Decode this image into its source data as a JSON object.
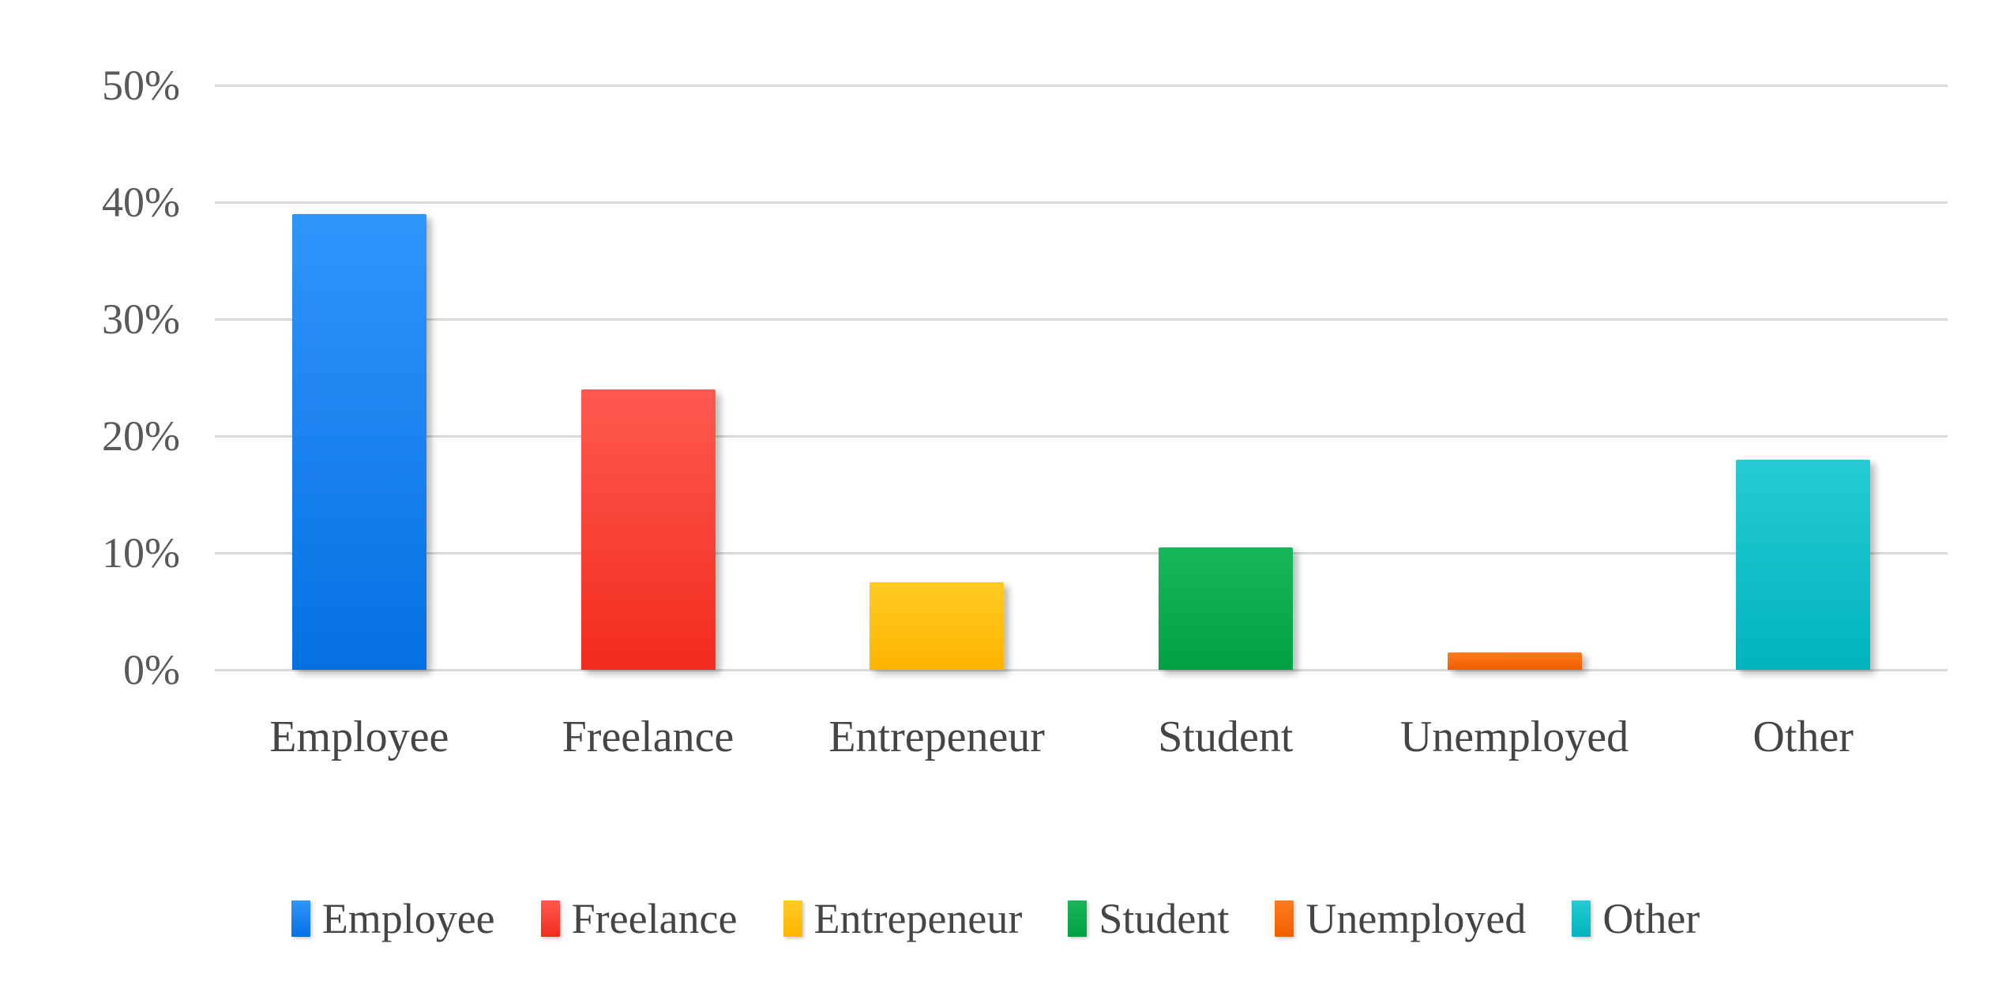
{
  "chart_data": {
    "type": "bar",
    "title": "",
    "xlabel": "",
    "ylabel": "",
    "categories": [
      "Employee",
      "Freelance",
      "Entrepeneur",
      "Student",
      "Unemployed",
      "Other"
    ],
    "values": [
      39,
      24,
      7.5,
      10.5,
      1.5,
      18
    ],
    "unit": "%",
    "ylim": [
      0,
      50
    ],
    "yticks": [
      0,
      10,
      20,
      30,
      40,
      50
    ],
    "ytick_labels": [
      "0%",
      "10%",
      "20%",
      "30%",
      "40%",
      "50%"
    ],
    "grid": true,
    "legend": {
      "position": "bottom",
      "entries": [
        "Employee",
        "Freelance",
        "Entrepeneur",
        "Student",
        "Unemployed",
        "Other"
      ]
    },
    "bar_colors": [
      {
        "name": "blue",
        "top": "#2F96FC",
        "bottom": "#0570E2",
        "base": "#0B83F5"
      },
      {
        "name": "red",
        "top": "#FF5A50",
        "bottom": "#F22B1D",
        "base": "#FA3A2B"
      },
      {
        "name": "yellow",
        "top": "#FFCB23",
        "bottom": "#FFB400",
        "base": "#FFC100"
      },
      {
        "name": "green",
        "top": "#19B75B",
        "bottom": "#00A143",
        "base": "#00AE4A"
      },
      {
        "name": "orange",
        "top": "#FF7D1C",
        "bottom": "#F05E00",
        "base": "#FF6D00"
      },
      {
        "name": "teal",
        "top": "#26CBD3",
        "bottom": "#00B4BE",
        "base": "#00C2CB"
      }
    ]
  },
  "styles": {
    "background": "#FFFFFF",
    "gridline_color": "#D9D9D9",
    "axis_text_color": "#595959",
    "label_text_color": "#454545"
  }
}
